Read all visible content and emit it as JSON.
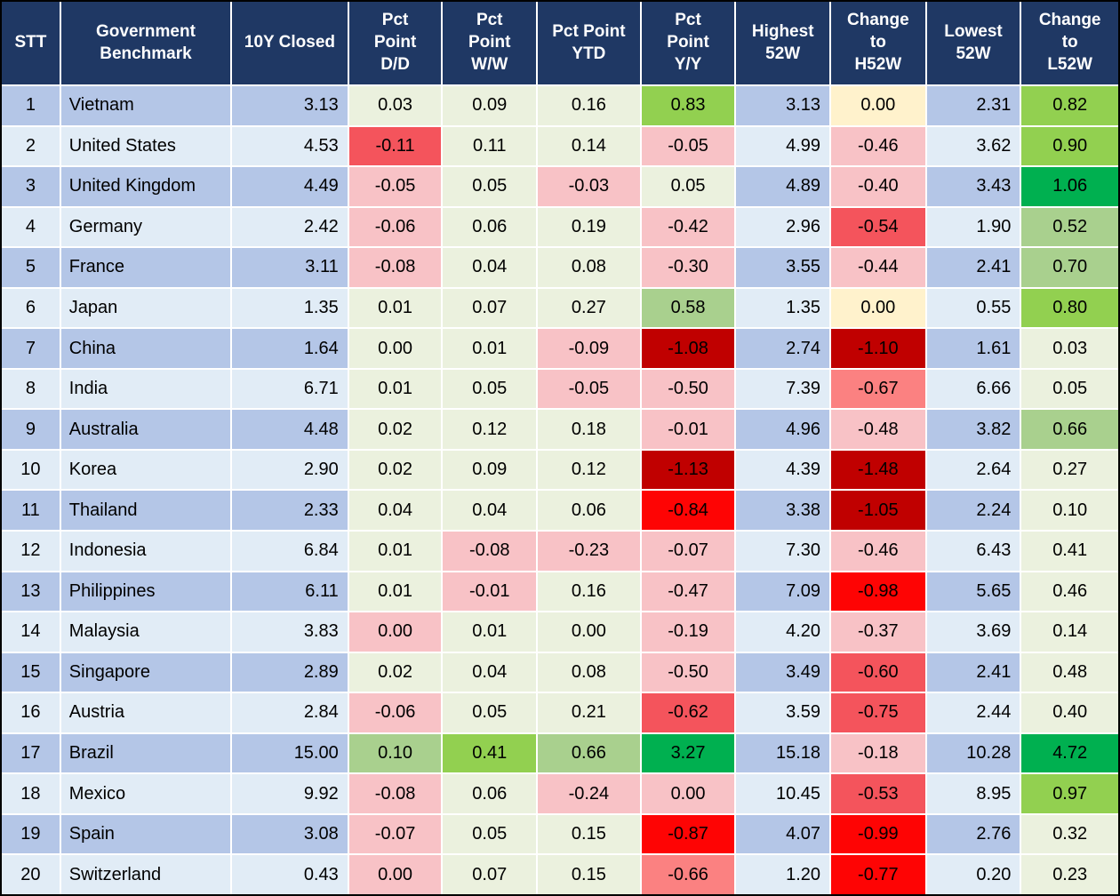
{
  "table": {
    "header_bg": "#1F3864",
    "header_text_color": "#FFFFFF",
    "row_band_colors": {
      "odd": "#B4C6E7",
      "even": "#E1ECF6"
    },
    "palette": {
      "g1": "#EBF1DE",
      "g2": "#A9D08E",
      "g3": "#92D050",
      "g4": "#00B050",
      "y": "#FFF2CC",
      "p1": "#F8C2C6",
      "p2": "#FB8181",
      "r1": "#F4545C",
      "r2": "#FE0404",
      "r3": "#C00000"
    },
    "columns": [
      {
        "key": "stt",
        "label": "STT",
        "align": "c",
        "type": "band"
      },
      {
        "key": "name",
        "label": "Government\nBenchmark",
        "align": "l",
        "type": "band"
      },
      {
        "key": "closed",
        "label": "10Y Closed",
        "align": "r",
        "type": "band"
      },
      {
        "key": "dd",
        "label": "Pct\nPoint\nD/D",
        "align": "c",
        "type": "cond"
      },
      {
        "key": "ww",
        "label": "Pct\nPoint\nW/W",
        "align": "c",
        "type": "cond"
      },
      {
        "key": "ytd",
        "label": "Pct Point\nYTD",
        "align": "c",
        "type": "cond"
      },
      {
        "key": "yy",
        "label": "Pct\nPoint\nY/Y",
        "align": "c",
        "type": "cond"
      },
      {
        "key": "h52",
        "label": "Highest\n52W",
        "align": "r",
        "type": "band"
      },
      {
        "key": "ch52",
        "label": "Change\nto\nH52W",
        "align": "c",
        "type": "cond"
      },
      {
        "key": "l52",
        "label": "Lowest\n52W",
        "align": "r",
        "type": "band"
      },
      {
        "key": "cl52",
        "label": "Change\nto\nL52W",
        "align": "c",
        "type": "cond"
      }
    ],
    "rows": [
      {
        "stt": "1",
        "name": "Vietnam",
        "closed": "3.13",
        "h52": "3.13",
        "l52": "2.31",
        "dd": [
          "0.03",
          "g1"
        ],
        "ww": [
          "0.09",
          "g1"
        ],
        "ytd": [
          "0.16",
          "g1"
        ],
        "yy": [
          "0.83",
          "g3"
        ],
        "ch52": [
          "0.00",
          "y"
        ],
        "cl52": [
          "0.82",
          "g3"
        ]
      },
      {
        "stt": "2",
        "name": "United States",
        "closed": "4.53",
        "h52": "4.99",
        "l52": "3.62",
        "dd": [
          "-0.11",
          "r1"
        ],
        "ww": [
          "0.11",
          "g1"
        ],
        "ytd": [
          "0.14",
          "g1"
        ],
        "yy": [
          "-0.05",
          "p1"
        ],
        "ch52": [
          "-0.46",
          "p1"
        ],
        "cl52": [
          "0.90",
          "g3"
        ]
      },
      {
        "stt": "3",
        "name": "United Kingdom",
        "closed": "4.49",
        "h52": "4.89",
        "l52": "3.43",
        "dd": [
          "-0.05",
          "p1"
        ],
        "ww": [
          "0.05",
          "g1"
        ],
        "ytd": [
          "-0.03",
          "p1"
        ],
        "yy": [
          "0.05",
          "g1"
        ],
        "ch52": [
          "-0.40",
          "p1"
        ],
        "cl52": [
          "1.06",
          "g4"
        ]
      },
      {
        "stt": "4",
        "name": "Germany",
        "closed": "2.42",
        "h52": "2.96",
        "l52": "1.90",
        "dd": [
          "-0.06",
          "p1"
        ],
        "ww": [
          "0.06",
          "g1"
        ],
        "ytd": [
          "0.19",
          "g1"
        ],
        "yy": [
          "-0.42",
          "p1"
        ],
        "ch52": [
          "-0.54",
          "r1"
        ],
        "cl52": [
          "0.52",
          "g2"
        ]
      },
      {
        "stt": "5",
        "name": "France",
        "closed": "3.11",
        "h52": "3.55",
        "l52": "2.41",
        "dd": [
          "-0.08",
          "p1"
        ],
        "ww": [
          "0.04",
          "g1"
        ],
        "ytd": [
          "0.08",
          "g1"
        ],
        "yy": [
          "-0.30",
          "p1"
        ],
        "ch52": [
          "-0.44",
          "p1"
        ],
        "cl52": [
          "0.70",
          "g2"
        ]
      },
      {
        "stt": "6",
        "name": "Japan",
        "closed": "1.35",
        "h52": "1.35",
        "l52": "0.55",
        "dd": [
          "0.01",
          "g1"
        ],
        "ww": [
          "0.07",
          "g1"
        ],
        "ytd": [
          "0.27",
          "g1"
        ],
        "yy": [
          "0.58",
          "g2"
        ],
        "ch52": [
          "0.00",
          "y"
        ],
        "cl52": [
          "0.80",
          "g3"
        ]
      },
      {
        "stt": "7",
        "name": "China",
        "closed": "1.64",
        "h52": "2.74",
        "l52": "1.61",
        "dd": [
          "0.00",
          "g1"
        ],
        "ww": [
          "0.01",
          "g1"
        ],
        "ytd": [
          "-0.09",
          "p1"
        ],
        "yy": [
          "-1.08",
          "r3"
        ],
        "ch52": [
          "-1.10",
          "r3"
        ],
        "cl52": [
          "0.03",
          "g1"
        ]
      },
      {
        "stt": "8",
        "name": "India",
        "closed": "6.71",
        "h52": "7.39",
        "l52": "6.66",
        "dd": [
          "0.01",
          "g1"
        ],
        "ww": [
          "0.05",
          "g1"
        ],
        "ytd": [
          "-0.05",
          "p1"
        ],
        "yy": [
          "-0.50",
          "p1"
        ],
        "ch52": [
          "-0.67",
          "p2"
        ],
        "cl52": [
          "0.05",
          "g1"
        ]
      },
      {
        "stt": "9",
        "name": "Australia",
        "closed": "4.48",
        "h52": "4.96",
        "l52": "3.82",
        "dd": [
          "0.02",
          "g1"
        ],
        "ww": [
          "0.12",
          "g1"
        ],
        "ytd": [
          "0.18",
          "g1"
        ],
        "yy": [
          "-0.01",
          "p1"
        ],
        "ch52": [
          "-0.48",
          "p1"
        ],
        "cl52": [
          "0.66",
          "g2"
        ]
      },
      {
        "stt": "10",
        "name": "Korea",
        "closed": "2.90",
        "h52": "4.39",
        "l52": "2.64",
        "dd": [
          "0.02",
          "g1"
        ],
        "ww": [
          "0.09",
          "g1"
        ],
        "ytd": [
          "0.12",
          "g1"
        ],
        "yy": [
          "-1.13",
          "r3"
        ],
        "ch52": [
          "-1.48",
          "r3"
        ],
        "cl52": [
          "0.27",
          "g1"
        ]
      },
      {
        "stt": "11",
        "name": "Thailand",
        "closed": "2.33",
        "h52": "3.38",
        "l52": "2.24",
        "dd": [
          "0.04",
          "g1"
        ],
        "ww": [
          "0.04",
          "g1"
        ],
        "ytd": [
          "0.06",
          "g1"
        ],
        "yy": [
          "-0.84",
          "r2"
        ],
        "ch52": [
          "-1.05",
          "r3"
        ],
        "cl52": [
          "0.10",
          "g1"
        ]
      },
      {
        "stt": "12",
        "name": "Indonesia",
        "closed": "6.84",
        "h52": "7.30",
        "l52": "6.43",
        "dd": [
          "0.01",
          "g1"
        ],
        "ww": [
          "-0.08",
          "p1"
        ],
        "ytd": [
          "-0.23",
          "p1"
        ],
        "yy": [
          "-0.07",
          "p1"
        ],
        "ch52": [
          "-0.46",
          "p1"
        ],
        "cl52": [
          "0.41",
          "g1"
        ]
      },
      {
        "stt": "13",
        "name": "Philippines",
        "closed": "6.11",
        "h52": "7.09",
        "l52": "5.65",
        "dd": [
          "0.01",
          "g1"
        ],
        "ww": [
          "-0.01",
          "p1"
        ],
        "ytd": [
          "0.16",
          "g1"
        ],
        "yy": [
          "-0.47",
          "p1"
        ],
        "ch52": [
          "-0.98",
          "r2"
        ],
        "cl52": [
          "0.46",
          "g1"
        ]
      },
      {
        "stt": "14",
        "name": "Malaysia",
        "closed": "3.83",
        "h52": "4.20",
        "l52": "3.69",
        "dd": [
          "0.00",
          "p1"
        ],
        "ww": [
          "0.01",
          "g1"
        ],
        "ytd": [
          "0.00",
          "g1"
        ],
        "yy": [
          "-0.19",
          "p1"
        ],
        "ch52": [
          "-0.37",
          "p1"
        ],
        "cl52": [
          "0.14",
          "g1"
        ]
      },
      {
        "stt": "15",
        "name": "Singapore",
        "closed": "2.89",
        "h52": "3.49",
        "l52": "2.41",
        "dd": [
          "0.02",
          "g1"
        ],
        "ww": [
          "0.04",
          "g1"
        ],
        "ytd": [
          "0.08",
          "g1"
        ],
        "yy": [
          "-0.50",
          "p1"
        ],
        "ch52": [
          "-0.60",
          "r1"
        ],
        "cl52": [
          "0.48",
          "g1"
        ]
      },
      {
        "stt": "16",
        "name": "Austria",
        "closed": "2.84",
        "h52": "3.59",
        "l52": "2.44",
        "dd": [
          "-0.06",
          "p1"
        ],
        "ww": [
          "0.05",
          "g1"
        ],
        "ytd": [
          "0.21",
          "g1"
        ],
        "yy": [
          "-0.62",
          "r1"
        ],
        "ch52": [
          "-0.75",
          "r1"
        ],
        "cl52": [
          "0.40",
          "g1"
        ]
      },
      {
        "stt": "17",
        "name": "Brazil",
        "closed": "15.00",
        "h52": "15.18",
        "l52": "10.28",
        "dd": [
          "0.10",
          "g2"
        ],
        "ww": [
          "0.41",
          "g3"
        ],
        "ytd": [
          "0.66",
          "g2"
        ],
        "yy": [
          "3.27",
          "g4"
        ],
        "ch52": [
          "-0.18",
          "p1"
        ],
        "cl52": [
          "4.72",
          "g4"
        ]
      },
      {
        "stt": "18",
        "name": "Mexico",
        "closed": "9.92",
        "h52": "10.45",
        "l52": "8.95",
        "dd": [
          "-0.08",
          "p1"
        ],
        "ww": [
          "0.06",
          "g1"
        ],
        "ytd": [
          "-0.24",
          "p1"
        ],
        "yy": [
          "0.00",
          "p1"
        ],
        "ch52": [
          "-0.53",
          "r1"
        ],
        "cl52": [
          "0.97",
          "g3"
        ]
      },
      {
        "stt": "19",
        "name": "Spain",
        "closed": "3.08",
        "h52": "4.07",
        "l52": "2.76",
        "dd": [
          "-0.07",
          "p1"
        ],
        "ww": [
          "0.05",
          "g1"
        ],
        "ytd": [
          "0.15",
          "g1"
        ],
        "yy": [
          "-0.87",
          "r2"
        ],
        "ch52": [
          "-0.99",
          "r2"
        ],
        "cl52": [
          "0.32",
          "g1"
        ]
      },
      {
        "stt": "20",
        "name": "Switzerland",
        "closed": "0.43",
        "h52": "1.20",
        "l52": "0.20",
        "dd": [
          "0.00",
          "p1"
        ],
        "ww": [
          "0.07",
          "g1"
        ],
        "ytd": [
          "0.15",
          "g1"
        ],
        "yy": [
          "-0.66",
          "p2"
        ],
        "ch52": [
          "-0.77",
          "r2"
        ],
        "cl52": [
          "0.23",
          "g1"
        ]
      }
    ]
  }
}
